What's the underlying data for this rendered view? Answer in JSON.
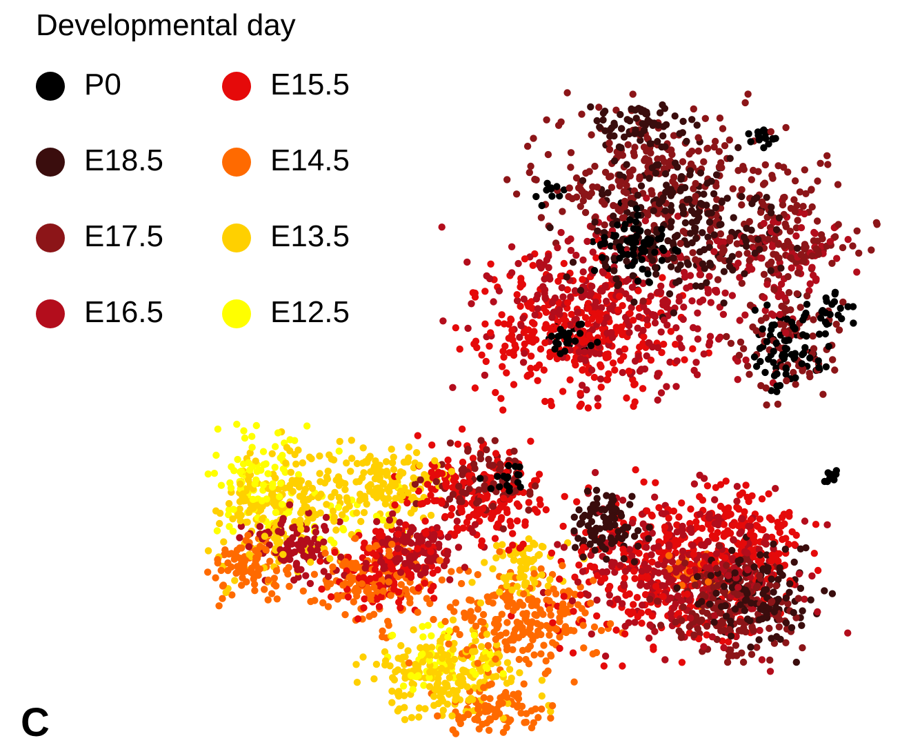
{
  "panel_label": "C",
  "chart_data": {
    "type": "scatter",
    "title": "",
    "xlabel": "",
    "ylabel": "",
    "grid": false,
    "axes_visible": false,
    "legend": {
      "title": "Developmental day",
      "placement": "top-left",
      "columns": 2
    },
    "series": [
      {
        "name": "P0",
        "color": "#000000",
        "approx_points": 260
      },
      {
        "name": "E18.5",
        "color": "#3a0d0d",
        "approx_points": 520
      },
      {
        "name": "E17.5",
        "color": "#8c1518",
        "approx_points": 760
      },
      {
        "name": "E16.5",
        "color": "#b30d1c",
        "approx_points": 900
      },
      {
        "name": "E15.5",
        "color": "#e50a0a",
        "approx_points": 1100
      },
      {
        "name": "E14.5",
        "color": "#ff6a00",
        "approx_points": 600
      },
      {
        "name": "E13.5",
        "color": "#ffd000",
        "approx_points": 650
      },
      {
        "name": "E12.5",
        "color": "#ffff00",
        "approx_points": 180
      }
    ]
  }
}
